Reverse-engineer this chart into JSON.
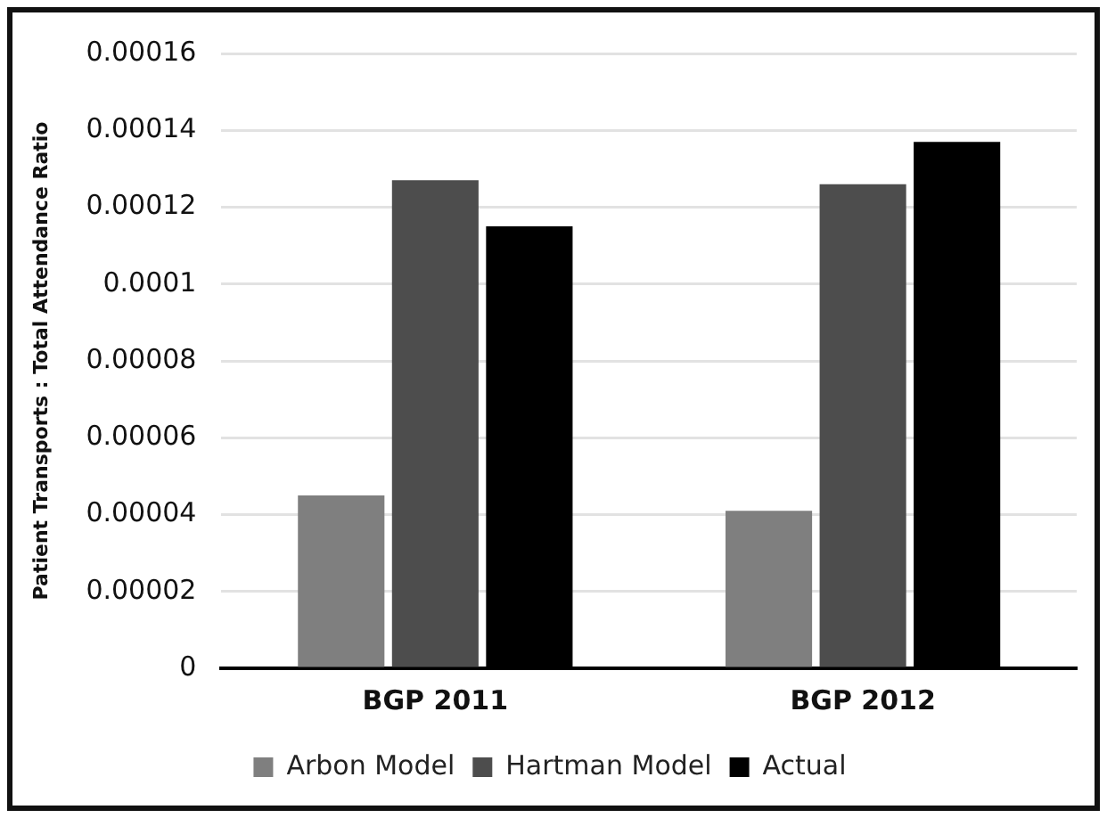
{
  "chart_data": {
    "type": "bar",
    "ylabel": "Patient Transports : Total Attendance Ratio",
    "categories": [
      "BGP 2011",
      "BGP 2012"
    ],
    "series": [
      {
        "name": "Arbon Model",
        "color": "#7f7f7f",
        "values": [
          4.5e-05,
          4.1e-05
        ]
      },
      {
        "name": "Hartman Model",
        "color": "#4d4d4d",
        "values": [
          0.000127,
          0.000126
        ]
      },
      {
        "name": "Actual",
        "color": "#000000",
        "values": [
          0.000115,
          0.000137
        ]
      }
    ],
    "ylim": [
      0,
      0.00016
    ],
    "yticks": [
      0,
      {
        "value": 2e-05,
        "label": "0.00002"
      },
      {
        "value": 4e-05,
        "label": "0.00004"
      },
      {
        "value": 6e-05,
        "label": "0.00006"
      },
      {
        "value": 8e-05,
        "label": "0.00008"
      },
      0.0001,
      0.00012,
      0.00014,
      0.00016
    ],
    "grid": "y",
    "legend": "bottom"
  }
}
